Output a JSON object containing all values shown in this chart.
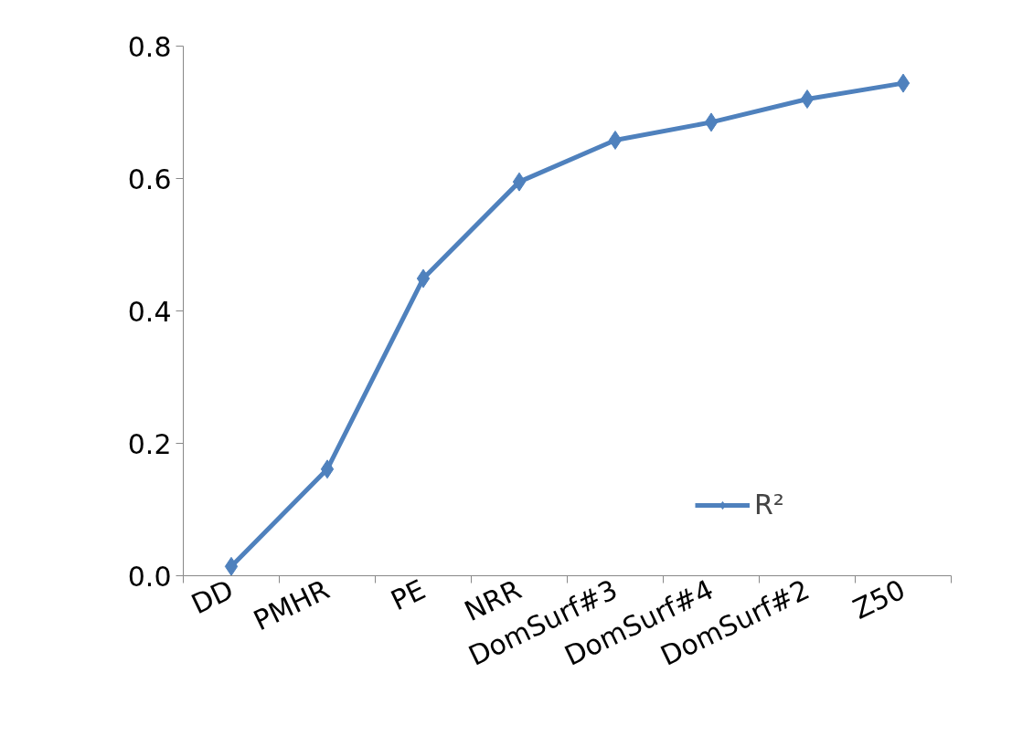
{
  "chart_data": {
    "type": "line",
    "categories": [
      "DD",
      "PMHR",
      "PE",
      "NRR",
      "DomSurf#3",
      "DomSurf#4",
      "DomSurf#2",
      "Z50"
    ],
    "series": [
      {
        "name": "R²",
        "color": "#4f81bd",
        "values": [
          0.014,
          0.161,
          0.449,
          0.595,
          0.658,
          0.685,
          0.72,
          0.744
        ]
      }
    ],
    "ylim": [
      0,
      0.8
    ],
    "yticks": [
      {
        "value": 0,
        "label": "0.0"
      },
      0.2,
      0.4,
      0.6,
      0.8
    ],
    "marker": "diamond",
    "line_style": "solid",
    "grid": false,
    "legend": "bottom right"
  }
}
